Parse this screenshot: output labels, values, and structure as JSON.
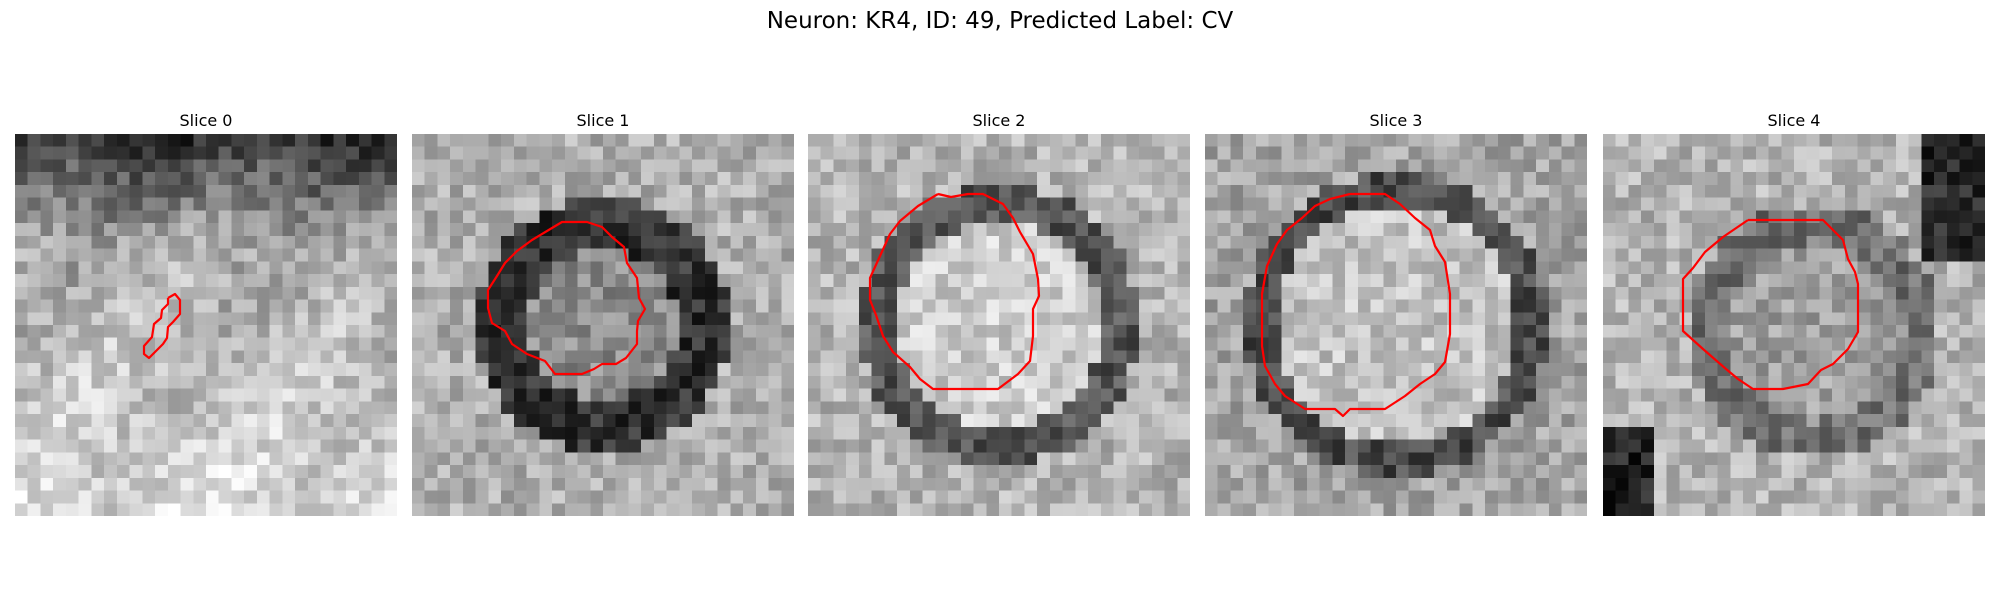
{
  "figure": {
    "title": "Neuron: KR4, ID: 49, Predicted Label: CV"
  },
  "colors": {
    "contour": "#ff0000",
    "background": "#ffffff"
  },
  "panels": [
    {
      "title": "Slice 0",
      "variant": "small-elongated"
    },
    {
      "title": "Slice 1",
      "variant": "dark-ring"
    },
    {
      "title": "Slice 2",
      "variant": "dark-ring-bright"
    },
    {
      "title": "Slice 3",
      "variant": "faint-ring"
    },
    {
      "title": "Slice 4",
      "variant": "offset-ring"
    }
  ]
}
